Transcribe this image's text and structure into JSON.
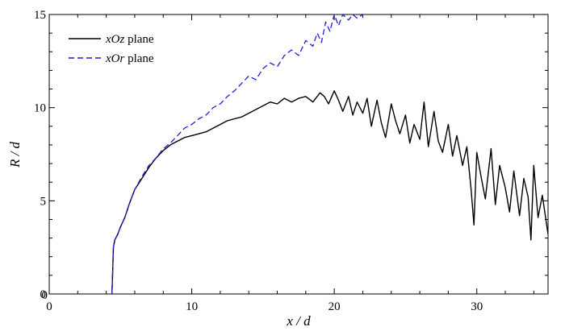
{
  "chart_data": {
    "type": "line",
    "title": "",
    "xlabel": "x / d",
    "ylabel": "R / d",
    "xlim": [
      0,
      35
    ],
    "ylim": [
      0,
      15
    ],
    "xticks": [
      0,
      10,
      20,
      30
    ],
    "yticks": [
      0,
      5,
      10,
      15
    ],
    "extra_tick_labels": [
      {
        "axis": "x",
        "value": 0,
        "text": "0"
      }
    ],
    "grid": false,
    "legend_position": "top-left",
    "series": [
      {
        "name": "xOz plane",
        "legend_italic": "xOz",
        "legend_rest": " plane",
        "color": "#000000",
        "style": "solid",
        "x": [
          4.4,
          4.45,
          4.5,
          4.6,
          4.8,
          5.0,
          5.3,
          5.6,
          6.0,
          6.5,
          7.0,
          7.5,
          8.0,
          8.5,
          9.0,
          9.5,
          10.0,
          10.5,
          11.0,
          11.5,
          12.0,
          12.5,
          13.0,
          13.5,
          14.0,
          14.5,
          15.0,
          15.5,
          16.0,
          16.5,
          17.0,
          17.5,
          18.0,
          18.5,
          19.0,
          19.3,
          19.6,
          20.0,
          20.3,
          20.6,
          21.0,
          21.3,
          21.6,
          22.0,
          22.3,
          22.6,
          23.0,
          23.3,
          23.6,
          24.0,
          24.3,
          24.6,
          25.0,
          25.3,
          25.6,
          26.0,
          26.3,
          26.6,
          27.0,
          27.3,
          27.6,
          28.0,
          28.3,
          28.6,
          29.0,
          29.3,
          29.6,
          29.8,
          30.0,
          30.3,
          30.6,
          31.0,
          31.3,
          31.6,
          32.0,
          32.3,
          32.6,
          33.0,
          33.3,
          33.6,
          33.8,
          34.0,
          34.3,
          34.6,
          35.0
        ],
        "y": [
          0.0,
          1.2,
          2.5,
          2.9,
          3.2,
          3.6,
          4.1,
          4.8,
          5.6,
          6.2,
          6.8,
          7.3,
          7.7,
          8.0,
          8.2,
          8.4,
          8.5,
          8.6,
          8.7,
          8.9,
          9.1,
          9.3,
          9.4,
          9.5,
          9.7,
          9.9,
          10.1,
          10.3,
          10.2,
          10.5,
          10.3,
          10.5,
          10.6,
          10.3,
          10.8,
          10.6,
          10.2,
          10.9,
          10.4,
          9.8,
          10.6,
          9.6,
          10.3,
          9.7,
          10.5,
          9.0,
          10.4,
          9.2,
          8.4,
          10.2,
          9.3,
          8.6,
          9.6,
          8.1,
          9.1,
          8.3,
          10.3,
          7.9,
          9.8,
          8.2,
          7.6,
          9.1,
          7.4,
          8.5,
          6.9,
          7.9,
          5.6,
          3.7,
          7.6,
          6.3,
          5.1,
          7.8,
          4.8,
          6.9,
          5.7,
          4.4,
          6.6,
          4.2,
          6.2,
          5.2,
          2.9,
          6.9,
          4.1,
          5.3,
          3.2
        ]
      },
      {
        "name": "xOr plane",
        "legend_italic": "xOr",
        "legend_rest": " plane",
        "color": "#1f1fd6",
        "style": "dashed",
        "x": [
          4.4,
          4.45,
          4.5,
          4.6,
          4.8,
          5.0,
          5.3,
          5.6,
          6.0,
          6.5,
          7.0,
          7.5,
          8.0,
          8.5,
          9.0,
          9.5,
          10.0,
          10.5,
          11.0,
          11.5,
          12.0,
          12.5,
          13.0,
          13.5,
          14.0,
          14.5,
          15.0,
          15.5,
          16.0,
          16.5,
          17.0,
          17.5,
          18.0,
          18.5,
          18.8,
          19.1,
          19.4,
          19.7,
          20.0,
          20.3,
          20.6,
          21.0,
          21.3,
          21.6,
          22.0
        ],
        "y": [
          0.0,
          1.2,
          2.5,
          2.9,
          3.2,
          3.6,
          4.1,
          4.8,
          5.6,
          6.3,
          6.9,
          7.3,
          7.8,
          8.1,
          8.5,
          8.9,
          9.1,
          9.4,
          9.6,
          10.0,
          10.2,
          10.6,
          10.9,
          11.3,
          11.7,
          11.5,
          12.1,
          12.4,
          12.2,
          12.8,
          13.1,
          12.8,
          13.6,
          13.3,
          14.0,
          13.5,
          14.6,
          14.1,
          15.0,
          14.4,
          15.0,
          14.7,
          15.0,
          14.8,
          15.0
        ]
      }
    ]
  }
}
